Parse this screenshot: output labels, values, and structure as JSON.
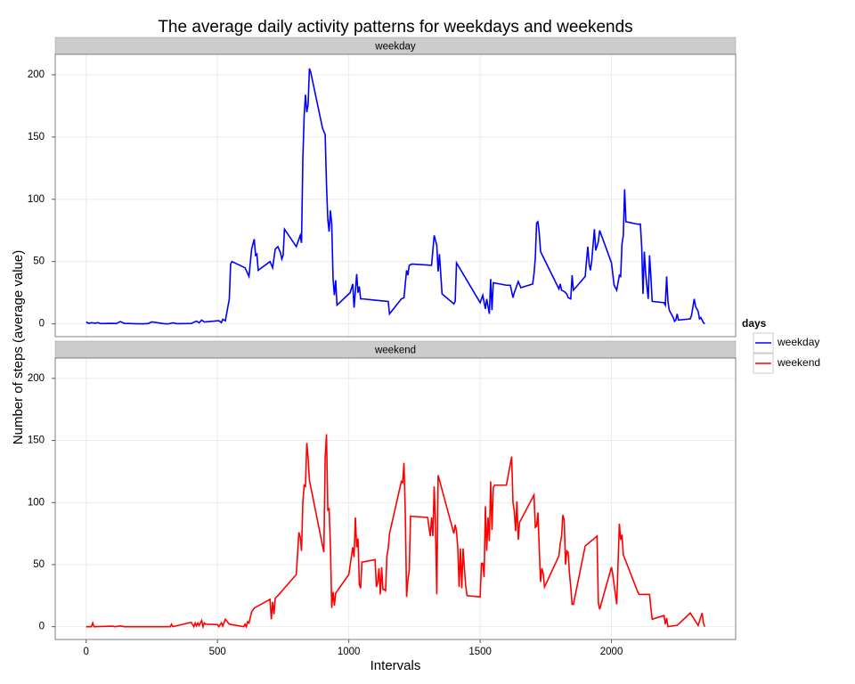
{
  "chart_data": {
    "type": "line",
    "title": "The average daily activity patterns for weekdays and weekends",
    "xlabel": "Intervals",
    "ylabel": "Number of steps (average value)",
    "legend_title": "days",
    "legend": "right",
    "grid": true,
    "xlim": [
      -117.75,
      2472.75
    ],
    "xticks": [
      0,
      500,
      1000,
      1500,
      2000
    ],
    "ylim": [
      -10.3,
      216.4
    ],
    "yticks": [
      0,
      50,
      100,
      150,
      200
    ],
    "series": [
      {
        "name": "weekday",
        "color": "#0000ff",
        "x": [
          0,
          10,
          20,
          35,
          45,
          55,
          100,
          115,
          130,
          145,
          200,
          220,
          235,
          250,
          300,
          315,
          330,
          345,
          400,
          420,
          430,
          440,
          450,
          505,
          515,
          520,
          530,
          545,
          550,
          555,
          605,
          620,
          630,
          640,
          645,
          650,
          655,
          700,
          710,
          720,
          730,
          740,
          745,
          750,
          755,
          800,
          815,
          820,
          825,
          830,
          835,
          840,
          845,
          850,
          855,
          900,
          910,
          915,
          920,
          925,
          930,
          935,
          940,
          945,
          950,
          955,
          1005,
          1015,
          1020,
          1030,
          1035,
          1040,
          1045,
          1055,
          1100,
          1150,
          1155,
          1200,
          1210,
          1220,
          1225,
          1230,
          1240,
          1315,
          1325,
          1335,
          1340,
          1345,
          1355,
          1400,
          1405,
          1410,
          1500,
          1510,
          1520,
          1525,
          1535,
          1540,
          1545,
          1550,
          1600,
          1615,
          1625,
          1630,
          1645,
          1655,
          1700,
          1705,
          1710,
          1715,
          1720,
          1725,
          1730,
          1800,
          1805,
          1810,
          1820,
          1830,
          1835,
          1845,
          1850,
          1855,
          1900,
          1905,
          1910,
          1915,
          1920,
          1925,
          1935,
          1940,
          1950,
          1955,
          2000,
          2010,
          2020,
          2030,
          2035,
          2040,
          2045,
          2050,
          2055,
          2100,
          2110,
          2115,
          2120,
          2125,
          2130,
          2135,
          2140,
          2145,
          2150,
          2155,
          2200,
          2205,
          2210,
          2215,
          2220,
          2235,
          2240,
          2245,
          2250,
          2255,
          2300,
          2305,
          2315,
          2320,
          2330,
          2335,
          2340,
          2345,
          2350,
          2355
        ],
        "values": [
          1.5,
          0.3,
          0.9,
          0.5,
          1,
          0.2,
          0.4,
          0.2,
          1.8,
          0.4,
          0,
          0,
          0.2,
          1.5,
          0,
          0,
          0.8,
          0.1,
          0.3,
          2.2,
          0.8,
          3,
          1.5,
          2.5,
          1,
          3.6,
          2.5,
          20,
          48,
          50,
          45,
          38,
          60,
          68,
          55,
          56,
          43,
          50,
          45,
          60,
          62,
          57,
          52,
          55,
          76,
          62,
          71,
          65,
          132,
          167,
          184,
          170,
          176,
          205,
          202,
          157,
          152,
          112,
          84,
          74,
          91,
          80,
          36,
          23,
          35,
          15,
          25,
          32,
          13,
          40,
          25,
          30,
          20,
          20,
          19,
          18,
          8,
          20,
          21,
          43,
          39,
          47,
          48,
          47,
          71,
          63,
          42,
          56,
          24,
          16,
          18,
          49,
          17,
          23,
          12,
          20,
          8,
          36,
          11,
          33,
          31,
          31,
          21,
          25,
          34,
          29,
          32,
          40,
          53,
          81,
          82,
          73,
          58,
          28,
          32,
          27,
          26,
          24,
          21,
          20,
          39,
          27,
          38,
          51,
          62,
          48,
          43,
          51,
          76,
          59,
          66,
          75,
          49,
          31,
          27,
          39,
          38,
          64,
          71,
          108,
          82,
          80,
          80,
          62,
          24,
          58,
          41,
          30,
          20,
          55,
          38,
          18,
          17,
          15,
          38,
          18,
          11,
          5,
          2,
          3,
          8,
          3,
          4,
          7,
          20,
          14,
          10,
          4,
          5,
          3,
          1,
          0
        ]
      },
      {
        "name": "weekend",
        "color": "#ff0000",
        "x": [
          0,
          20,
          25,
          30,
          100,
          110,
          130,
          145,
          200,
          230,
          300,
          320,
          325,
          330,
          400,
          410,
          415,
          420,
          425,
          430,
          440,
          445,
          450,
          455,
          500,
          505,
          515,
          520,
          530,
          545,
          600,
          605,
          610,
          615,
          620,
          630,
          640,
          700,
          705,
          710,
          715,
          720,
          730,
          800,
          810,
          815,
          820,
          825,
          830,
          835,
          840,
          845,
          850,
          905,
          910,
          915,
          920,
          925,
          930,
          935,
          940,
          945,
          950,
          1000,
          1015,
          1020,
          1025,
          1030,
          1035,
          1040,
          1045,
          1050,
          1100,
          1105,
          1110,
          1115,
          1120,
          1125,
          1130,
          1135,
          1140,
          1145,
          1150,
          1155,
          1200,
          1205,
          1210,
          1215,
          1220,
          1225,
          1230,
          1235,
          1300,
          1310,
          1315,
          1320,
          1325,
          1330,
          1335,
          1340,
          1400,
          1405,
          1410,
          1415,
          1420,
          1425,
          1430,
          1435,
          1440,
          1445,
          1450,
          1500,
          1505,
          1510,
          1515,
          1520,
          1525,
          1530,
          1535,
          1540,
          1545,
          1550,
          1555,
          1600,
          1615,
          1620,
          1625,
          1630,
          1635,
          1640,
          1645,
          1650,
          1705,
          1710,
          1715,
          1720,
          1725,
          1730,
          1735,
          1740,
          1745,
          1800,
          1805,
          1810,
          1815,
          1820,
          1825,
          1830,
          1835,
          1840,
          1845,
          1850,
          1855,
          1900,
          1945,
          1950,
          1955,
          2000,
          2005,
          2015,
          2020,
          2030,
          2035,
          2040,
          2045,
          2100,
          2105,
          2145,
          2150,
          2155,
          2200,
          2205,
          2210,
          2215,
          2245,
          2250,
          2300,
          2330,
          2345,
          2350,
          2355
        ],
        "values": [
          0,
          0,
          3,
          0,
          0.4,
          0,
          0.6,
          0,
          0,
          0,
          0,
          0,
          2,
          0,
          3.5,
          0,
          3,
          0.7,
          3,
          1,
          5,
          0,
          3,
          2,
          1.7,
          0,
          3.2,
          0.5,
          6,
          2,
          0,
          2,
          0,
          4,
          3,
          12,
          15,
          22,
          6,
          20,
          10,
          23,
          25,
          42,
          76,
          72,
          61,
          100,
          114,
          113,
          148,
          136,
          118,
          60,
          136,
          155,
          94,
          95,
          65,
          15,
          28,
          17,
          27,
          42,
          64,
          56,
          88,
          64,
          71,
          34,
          31,
          52,
          54,
          32,
          36,
          47,
          26,
          48,
          30,
          30,
          29,
          57,
          63,
          75,
          117,
          116,
          132,
          92,
          24,
          38,
          45,
          89,
          88,
          73,
          88,
          73,
          113,
          82,
          26,
          122,
          75,
          82,
          77,
          63,
          32,
          63,
          31,
          63,
          47,
          33,
          25,
          24,
          51,
          51,
          40,
          97,
          61,
          88,
          69,
          117,
          78,
          112,
          114,
          114,
          131,
          137,
          100,
          93,
          77,
          101,
          70,
          84,
          106,
          80,
          81,
          92,
          63,
          36,
          47,
          43,
          32,
          57,
          67,
          73,
          90,
          86,
          50,
          61,
          60,
          43,
          32,
          18,
          18,
          65,
          73,
          19,
          14,
          48,
          42,
          26,
          18,
          83,
          70,
          74,
          58,
          28,
          26,
          26,
          15,
          6,
          9,
          2,
          7,
          0,
          1,
          1,
          11,
          1,
          11,
          3,
          0
        ]
      }
    ]
  }
}
